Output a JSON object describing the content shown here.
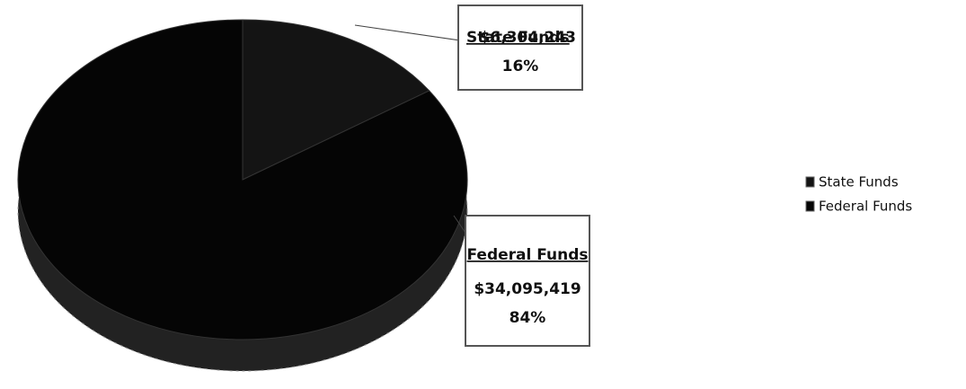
{
  "chart_data": {
    "type": "pie",
    "categories": [
      "State Funds",
      "Federal Funds"
    ],
    "values": [
      6304243,
      34095419
    ],
    "value_labels": [
      "$6,304,243",
      "$34,095,419"
    ],
    "percentages": [
      16,
      84
    ],
    "percentage_labels": [
      "16%",
      "84%"
    ],
    "colors": [
      "#141414",
      "#050505"
    ],
    "legend": "right"
  }
}
